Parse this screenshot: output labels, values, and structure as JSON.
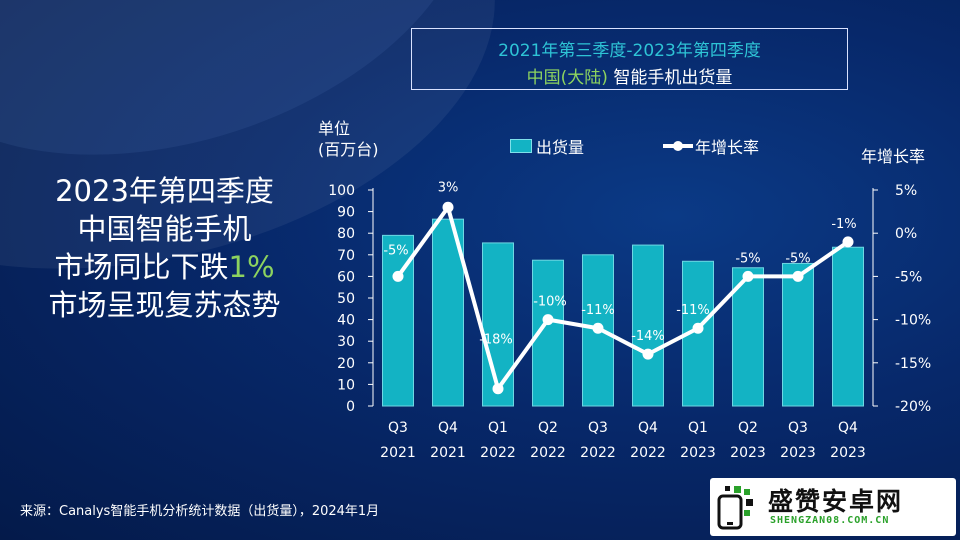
{
  "title": {
    "line1": "2021年第三季度-2023年第四季度",
    "line2_highlight": "中国(大陆)",
    "line2_rest": " 智能手机出货量"
  },
  "headline": {
    "line1": "2023年第四季度",
    "line2": "中国智能手机",
    "line3_prefix": "市场同比下跌",
    "line3_pct": "1%",
    "line4": "市场呈现复苏态势"
  },
  "left_axis": {
    "unit_line1": "单位",
    "unit_line2": "(百万台)"
  },
  "right_axis": {
    "title": "年增长率"
  },
  "legend": {
    "bar_label": "出货量",
    "line_label": "年增长率"
  },
  "source": "来源：Canalys智能手机分析统计数据（出货量），2024年1月",
  "logo": {
    "name": "盛赞安卓网",
    "url": "SHENGZAN08.COM.CN"
  },
  "colors": {
    "bar": "#13b3c4",
    "line": "#ffffff",
    "title_accent": "#2ec4d6",
    "highlight_green": "#8dd35f"
  },
  "chart_data": {
    "type": "bar",
    "categories": [
      [
        "Q3",
        "2021"
      ],
      [
        "Q4",
        "2021"
      ],
      [
        "Q1",
        "2022"
      ],
      [
        "Q2",
        "2022"
      ],
      [
        "Q3",
        "2022"
      ],
      [
        "Q4",
        "2022"
      ],
      [
        "Q1",
        "2023"
      ],
      [
        "Q2",
        "2023"
      ],
      [
        "Q3",
        "2023"
      ],
      [
        "Q4",
        "2023"
      ]
    ],
    "series": [
      {
        "name": "出货量",
        "type": "bar",
        "axis": "left",
        "values": [
          79,
          86.5,
          75.5,
          67.5,
          70,
          74.5,
          67,
          64,
          66,
          73.5
        ]
      },
      {
        "name": "年增长率",
        "type": "line",
        "axis": "right",
        "values": [
          -5,
          3,
          -18,
          -10,
          -11,
          -14,
          -11,
          -5,
          -5,
          -1
        ],
        "labels": [
          "-5%",
          "3%",
          "-18%",
          "-10%",
          "-11%",
          "-14%",
          "-11%",
          "-5%",
          "-5%",
          "-1%"
        ]
      }
    ],
    "y_left": {
      "min": 0,
      "max": 100,
      "ticks": [
        "0",
        "10",
        "20",
        "30",
        "40",
        "50",
        "60",
        "70",
        "80",
        "90",
        "100"
      ]
    },
    "y_right": {
      "min": -20,
      "max": 5,
      "ticks": [
        "5%",
        "0%",
        "-5%",
        "-10%",
        "-15%",
        "-20%"
      ],
      "tick_values": [
        5,
        0,
        -5,
        -10,
        -15,
        -20
      ]
    },
    "legend_position": "top",
    "grid": false
  }
}
